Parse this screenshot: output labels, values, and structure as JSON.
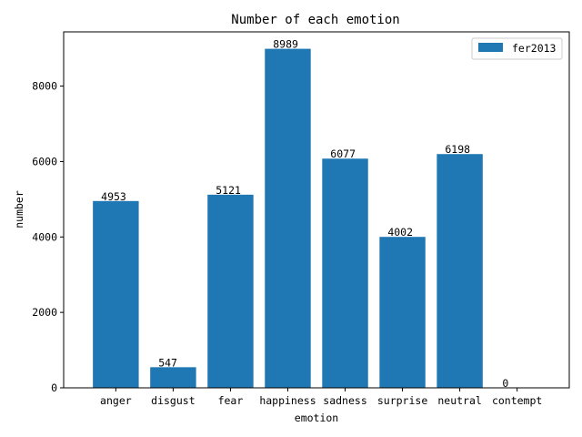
{
  "chart_data": {
    "type": "bar",
    "title": "Number of each emotion",
    "xlabel": "emotion",
    "ylabel": "number",
    "categories": [
      "anger",
      "disgust",
      "fear",
      "happiness",
      "sadness",
      "surprise",
      "neutral",
      "contempt"
    ],
    "series": [
      {
        "name": "fer2013",
        "values": [
          4953,
          547,
          5121,
          8989,
          6077,
          4002,
          6198,
          0
        ],
        "color": "#1f77b4"
      }
    ],
    "ylim": [
      0,
      9438
    ],
    "yticks": [
      0,
      2000,
      4000,
      6000,
      8000
    ],
    "grid": false,
    "legend_position": "top-right",
    "data_labels": true
  }
}
